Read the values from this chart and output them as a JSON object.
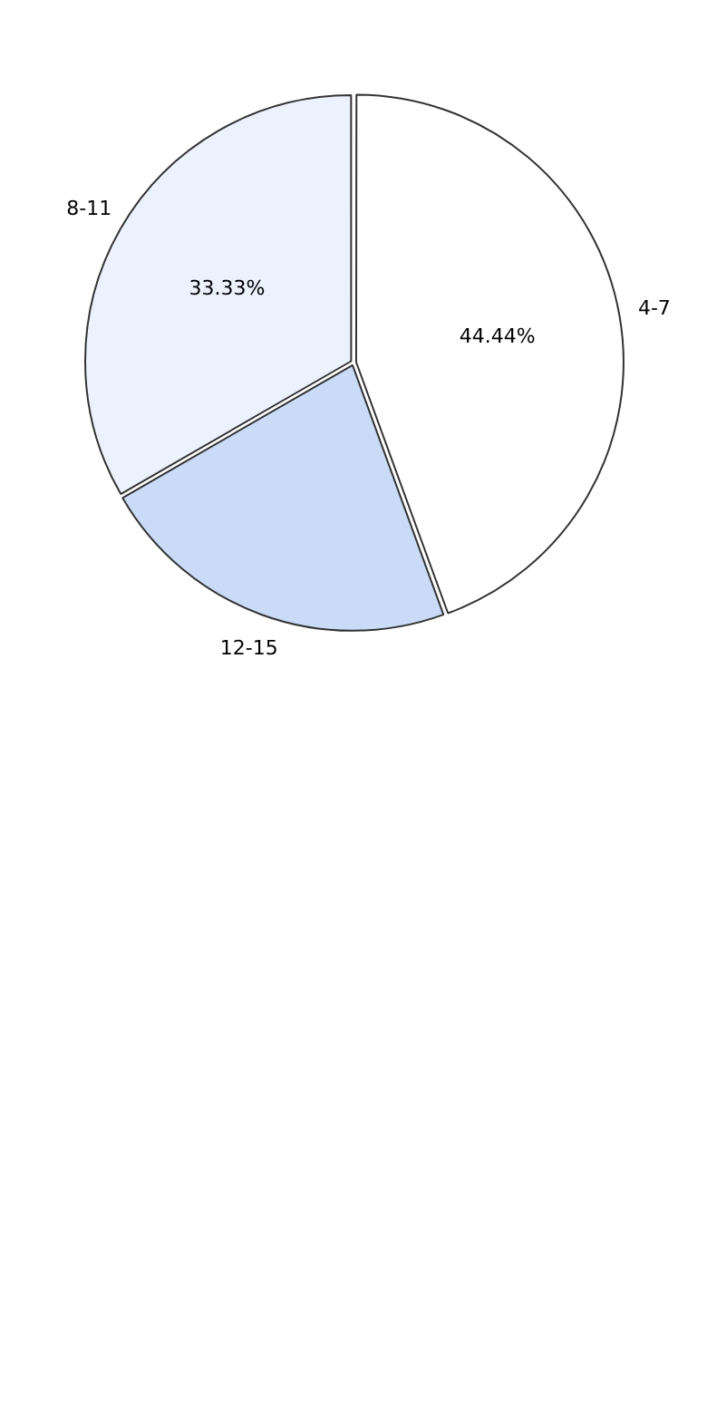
{
  "chart_data": {
    "type": "pie",
    "categories": [
      "4-7",
      "12-15",
      "8-11"
    ],
    "values": [
      44.44,
      22.23,
      33.33
    ],
    "colors": [
      "#ffffff",
      "#c9dbf7",
      "#ebf1fd"
    ],
    "value_labels": [
      "44.44%",
      null,
      "33.33%"
    ],
    "legend": false
  }
}
